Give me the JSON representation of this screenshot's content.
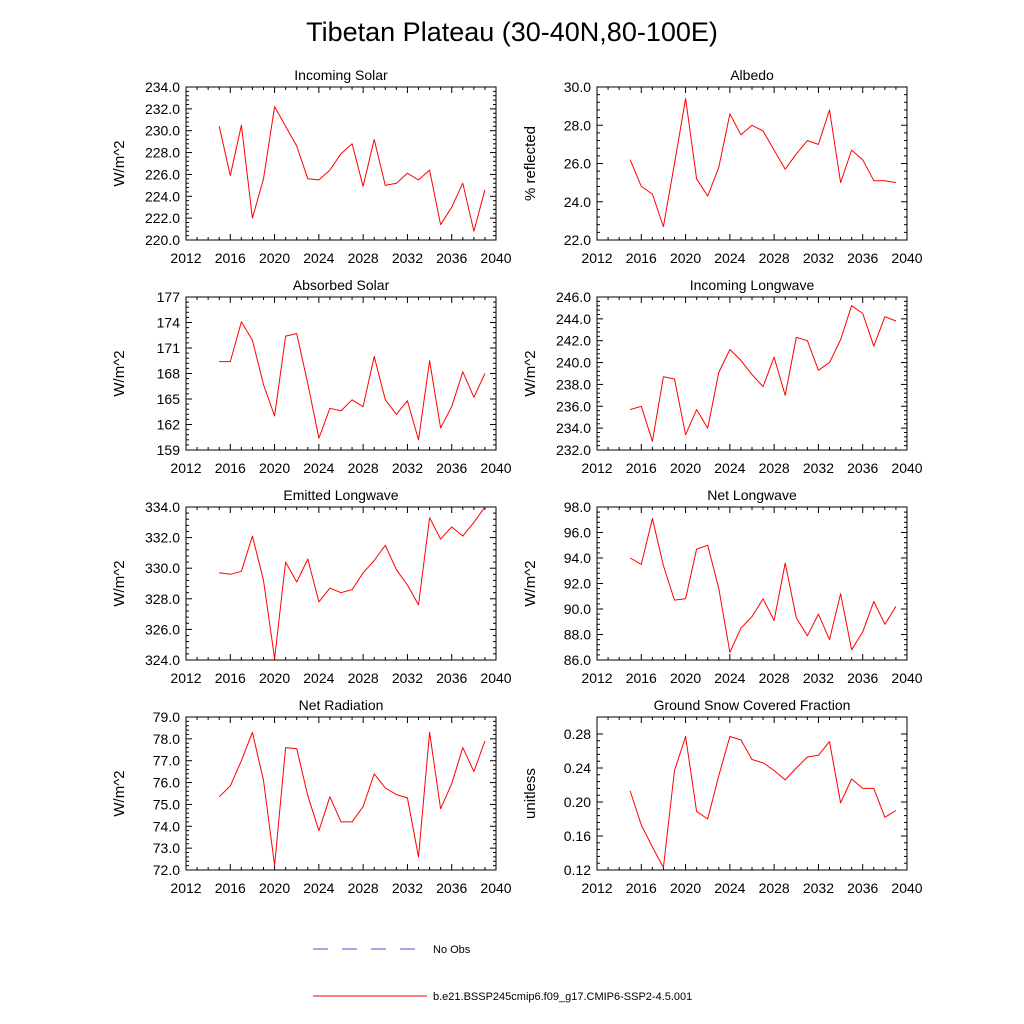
{
  "figure": {
    "title": "Tibetan Plateau (30-40N,80-100E)"
  },
  "colors": {
    "series": "#ff0000",
    "obs": "#4b4bd0",
    "axis": "#000000"
  },
  "legend": {
    "items": [
      {
        "label": "No Obs",
        "style": "dashed",
        "color": "#4b4bd0"
      },
      {
        "label": "b.e21.BSSP245cmip6.f09_g17.CMIP6-SSP2-4.5.001",
        "style": "solid",
        "color": "#ff0000"
      }
    ]
  },
  "chart_data": [
    {
      "type": "line",
      "title": "Incoming Solar",
      "ylabel": "W/m^2",
      "xlim": [
        2012,
        2040
      ],
      "xticks": [
        2012,
        2016,
        2020,
        2024,
        2028,
        2032,
        2036,
        2040
      ],
      "ylim": [
        220,
        234
      ],
      "yticks": [
        220,
        222,
        224,
        226,
        228,
        230,
        232,
        234
      ],
      "ytick_labels": [
        "220.0",
        "222.0",
        "224.0",
        "226.0",
        "228.0",
        "230.0",
        "232.0",
        "234.0"
      ],
      "x": [
        2015,
        2016,
        2017,
        2018,
        2019,
        2020,
        2021,
        2022,
        2023,
        2024,
        2025,
        2026,
        2027,
        2028,
        2029,
        2030,
        2031,
        2032,
        2033,
        2034,
        2035,
        2036,
        2037,
        2038,
        2039
      ],
      "series": [
        {
          "name": "b.e21.BSSP245cmip6.f09_g17.CMIP6-SSP2-4.5.001",
          "values": [
            230.4,
            225.9,
            230.5,
            222.0,
            225.6,
            232.2,
            230.4,
            228.6,
            225.6,
            225.5,
            226.4,
            227.9,
            228.8,
            224.9,
            229.2,
            225.0,
            225.2,
            226.1,
            225.5,
            226.4,
            221.4,
            223.0,
            225.2,
            220.8,
            224.6
          ]
        }
      ]
    },
    {
      "type": "line",
      "title": "Albedo",
      "ylabel": "% reflected",
      "xlim": [
        2012,
        2040
      ],
      "xticks": [
        2012,
        2016,
        2020,
        2024,
        2028,
        2032,
        2036,
        2040
      ],
      "ylim": [
        22,
        30
      ],
      "yticks": [
        22,
        24,
        26,
        28,
        30
      ],
      "ytick_labels": [
        "22.0",
        "24.0",
        "26.0",
        "28.0",
        "30.0"
      ],
      "x": [
        2015,
        2016,
        2017,
        2018,
        2019,
        2020,
        2021,
        2022,
        2023,
        2024,
        2025,
        2026,
        2027,
        2028,
        2029,
        2030,
        2031,
        2032,
        2033,
        2034,
        2035,
        2036,
        2037,
        2038,
        2039
      ],
      "series": [
        {
          "name": "b.e21.BSSP245cmip6.f09_g17.CMIP6-SSP2-4.5.001",
          "values": [
            26.2,
            24.8,
            24.4,
            22.7,
            26.0,
            29.4,
            25.2,
            24.3,
            25.8,
            28.6,
            27.5,
            28.0,
            27.7,
            26.7,
            25.7,
            26.5,
            27.2,
            27.0,
            28.8,
            25.0,
            26.7,
            26.2,
            25.1,
            25.1,
            25.0
          ]
        }
      ]
    },
    {
      "type": "line",
      "title": "Absorbed Solar",
      "ylabel": "W/m^2",
      "xlim": [
        2012,
        2040
      ],
      "xticks": [
        2012,
        2016,
        2020,
        2024,
        2028,
        2032,
        2036,
        2040
      ],
      "ylim": [
        159,
        177
      ],
      "yticks": [
        159,
        162,
        165,
        168,
        171,
        174,
        177
      ],
      "ytick_labels": [
        "159",
        "162",
        "165",
        "168",
        "171",
        "174",
        "177"
      ],
      "x": [
        2015,
        2016,
        2017,
        2018,
        2019,
        2020,
        2021,
        2022,
        2023,
        2024,
        2025,
        2026,
        2027,
        2028,
        2029,
        2030,
        2031,
        2032,
        2033,
        2034,
        2035,
        2036,
        2037,
        2038,
        2039
      ],
      "series": [
        {
          "name": "b.e21.BSSP245cmip6.f09_g17.CMIP6-SSP2-4.5.001",
          "values": [
            169.4,
            169.4,
            174.1,
            171.9,
            166.7,
            163.0,
            172.4,
            172.7,
            166.8,
            160.4,
            163.9,
            163.6,
            164.9,
            164.1,
            170.0,
            164.9,
            163.2,
            164.8,
            160.2,
            169.5,
            161.6,
            164.1,
            168.2,
            165.2,
            168.0
          ]
        }
      ]
    },
    {
      "type": "line",
      "title": "Incoming Longwave",
      "ylabel": "W/m^2",
      "xlim": [
        2012,
        2040
      ],
      "xticks": [
        2012,
        2016,
        2020,
        2024,
        2028,
        2032,
        2036,
        2040
      ],
      "ylim": [
        232,
        246
      ],
      "yticks": [
        232,
        234,
        236,
        238,
        240,
        242,
        244,
        246
      ],
      "ytick_labels": [
        "232.0",
        "234.0",
        "236.0",
        "238.0",
        "240.0",
        "242.0",
        "244.0",
        "246.0"
      ],
      "x": [
        2015,
        2016,
        2017,
        2018,
        2019,
        2020,
        2021,
        2022,
        2023,
        2024,
        2025,
        2026,
        2027,
        2028,
        2029,
        2030,
        2031,
        2032,
        2033,
        2034,
        2035,
        2036,
        2037,
        2038,
        2039
      ],
      "series": [
        {
          "name": "b.e21.BSSP245cmip6.f09_g17.CMIP6-SSP2-4.5.001",
          "values": [
            235.7,
            236.0,
            232.8,
            238.7,
            238.5,
            233.4,
            235.7,
            234.0,
            239.1,
            241.2,
            240.2,
            238.9,
            237.8,
            240.5,
            237.0,
            242.3,
            242.0,
            239.3,
            240.0,
            242.1,
            245.2,
            244.5,
            241.5,
            244.2,
            243.8
          ]
        }
      ]
    },
    {
      "type": "line",
      "title": "Emitted Longwave",
      "ylabel": "W/m^2",
      "xlim": [
        2012,
        2040
      ],
      "xticks": [
        2012,
        2016,
        2020,
        2024,
        2028,
        2032,
        2036,
        2040
      ],
      "ylim": [
        324,
        334
      ],
      "yticks": [
        324,
        326,
        328,
        330,
        332,
        334
      ],
      "ytick_labels": [
        "324.0",
        "326.0",
        "328.0",
        "330.0",
        "332.0",
        "334.0"
      ],
      "x": [
        2015,
        2016,
        2017,
        2018,
        2019,
        2020,
        2021,
        2022,
        2023,
        2024,
        2025,
        2026,
        2027,
        2028,
        2029,
        2030,
        2031,
        2032,
        2033,
        2034,
        2035,
        2036,
        2037,
        2038,
        2039
      ],
      "series": [
        {
          "name": "b.e21.BSSP245cmip6.f09_g17.CMIP6-SSP2-4.5.001",
          "values": [
            329.7,
            329.6,
            329.8,
            332.1,
            329.2,
            324.1,
            330.4,
            329.1,
            330.6,
            327.8,
            328.7,
            328.4,
            328.6,
            329.7,
            330.5,
            331.5,
            329.9,
            328.9,
            327.6,
            333.3,
            331.9,
            332.7,
            332.1,
            333.0,
            334.0
          ]
        }
      ]
    },
    {
      "type": "line",
      "title": "Net Longwave",
      "ylabel": "W/m^2",
      "xlim": [
        2012,
        2040
      ],
      "xticks": [
        2012,
        2016,
        2020,
        2024,
        2028,
        2032,
        2036,
        2040
      ],
      "ylim": [
        86,
        98
      ],
      "yticks": [
        86,
        88,
        90,
        92,
        94,
        96,
        98
      ],
      "ytick_labels": [
        "86.0",
        "88.0",
        "90.0",
        "92.0",
        "94.0",
        "96.0",
        "98.0"
      ],
      "x": [
        2015,
        2016,
        2017,
        2018,
        2019,
        2020,
        2021,
        2022,
        2023,
        2024,
        2025,
        2026,
        2027,
        2028,
        2029,
        2030,
        2031,
        2032,
        2033,
        2034,
        2035,
        2036,
        2037,
        2038,
        2039
      ],
      "series": [
        {
          "name": "b.e21.BSSP245cmip6.f09_g17.CMIP6-SSP2-4.5.001",
          "values": [
            94.0,
            93.5,
            97.1,
            93.4,
            90.7,
            90.8,
            94.7,
            95.0,
            91.6,
            86.6,
            88.5,
            89.4,
            90.8,
            89.1,
            93.6,
            89.3,
            87.9,
            89.6,
            87.6,
            91.2,
            86.8,
            88.2,
            90.6,
            88.8,
            90.2
          ]
        }
      ]
    },
    {
      "type": "line",
      "title": "Net Radiation",
      "ylabel": "W/m^2",
      "xlim": [
        2012,
        2040
      ],
      "xticks": [
        2012,
        2016,
        2020,
        2024,
        2028,
        2032,
        2036,
        2040
      ],
      "ylim": [
        72,
        79
      ],
      "yticks": [
        72,
        73,
        74,
        75,
        76,
        77,
        78,
        79
      ],
      "ytick_labels": [
        "72.0",
        "73.0",
        "74.0",
        "75.0",
        "76.0",
        "77.0",
        "78.0",
        "79.0"
      ],
      "x": [
        2015,
        2016,
        2017,
        2018,
        2019,
        2020,
        2021,
        2022,
        2023,
        2024,
        2025,
        2026,
        2027,
        2028,
        2029,
        2030,
        2031,
        2032,
        2033,
        2034,
        2035,
        2036,
        2037,
        2038,
        2039
      ],
      "series": [
        {
          "name": "b.e21.BSSP245cmip6.f09_g17.CMIP6-SSP2-4.5.001",
          "values": [
            75.35,
            75.85,
            77.0,
            78.3,
            76.1,
            72.2,
            77.6,
            77.55,
            75.4,
            73.8,
            75.35,
            74.2,
            74.2,
            74.9,
            76.4,
            75.75,
            75.45,
            75.3,
            72.6,
            78.3,
            74.8,
            75.95,
            77.6,
            76.5,
            77.9
          ]
        }
      ]
    },
    {
      "type": "line",
      "title": "Ground Snow Covered Fraction",
      "ylabel": "unitless",
      "xlim": [
        2012,
        2040
      ],
      "xticks": [
        2012,
        2016,
        2020,
        2024,
        2028,
        2032,
        2036,
        2040
      ],
      "ylim": [
        0.12,
        0.3
      ],
      "yticks": [
        0.12,
        0.16,
        0.2,
        0.24,
        0.28
      ],
      "ytick_labels": [
        "0.12",
        "0.16",
        "0.20",
        "0.24",
        "0.28"
      ],
      "x": [
        2015,
        2016,
        2017,
        2018,
        2019,
        2020,
        2021,
        2022,
        2023,
        2024,
        2025,
        2026,
        2027,
        2028,
        2029,
        2030,
        2031,
        2032,
        2033,
        2034,
        2035,
        2036,
        2037,
        2038,
        2039
      ],
      "series": [
        {
          "name": "b.e21.BSSP245cmip6.f09_g17.CMIP6-SSP2-4.5.001",
          "values": [
            0.213,
            0.173,
            0.147,
            0.123,
            0.237,
            0.277,
            0.189,
            0.18,
            0.231,
            0.277,
            0.273,
            0.25,
            0.246,
            0.237,
            0.226,
            0.24,
            0.253,
            0.255,
            0.271,
            0.199,
            0.227,
            0.216,
            0.216,
            0.182,
            0.19
          ]
        }
      ]
    }
  ]
}
